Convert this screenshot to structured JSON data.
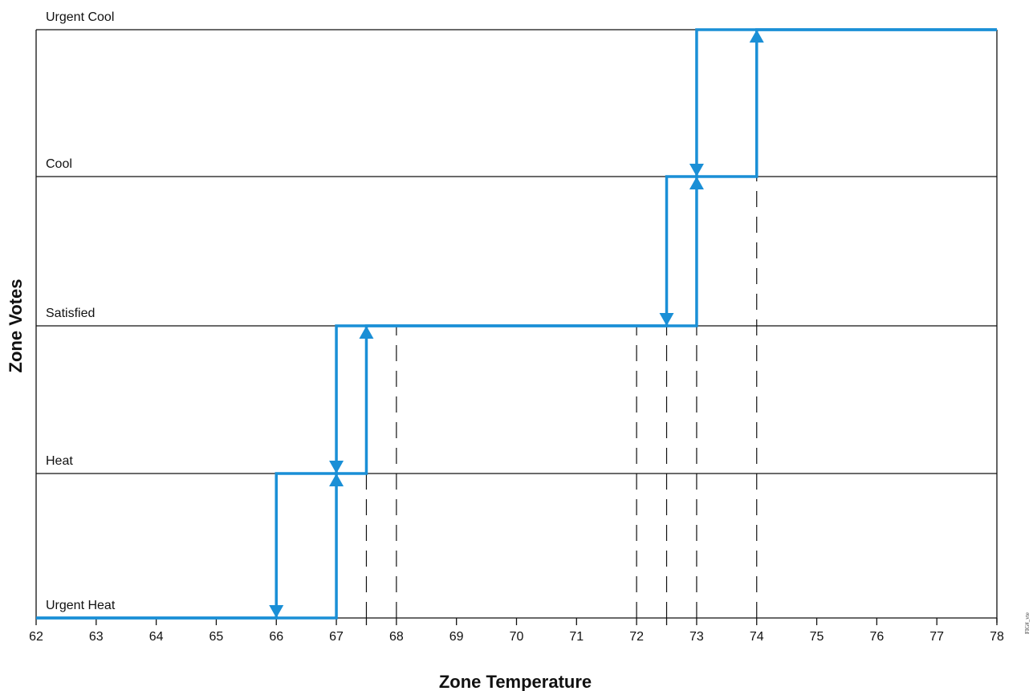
{
  "chart_data": {
    "type": "line",
    "title": "",
    "xlabel": "Zone Temperature",
    "ylabel": "Zone Votes",
    "figure_id": "FIG#_vte",
    "x_ticks": [
      62,
      63,
      64,
      65,
      66,
      67,
      68,
      69,
      70,
      71,
      72,
      73,
      74,
      75,
      76,
      77,
      78
    ],
    "xlim": [
      62,
      78
    ],
    "levels": [
      "Urgent Heat",
      "Heat",
      "Satisfied",
      "Cool",
      "Urgent Cool"
    ],
    "grid": "horizontal at each vote level",
    "line_color": "#1a8fd6",
    "series": [
      {
        "direction": "rising",
        "points": [
          {
            "x": 62,
            "y": "Urgent Heat"
          },
          {
            "x": 67,
            "y": "Urgent Heat"
          },
          {
            "x": 67,
            "y": "Heat"
          },
          {
            "x": 67.5,
            "y": "Heat"
          },
          {
            "x": 67.5,
            "y": "Satisfied"
          },
          {
            "x": 73,
            "y": "Satisfied"
          },
          {
            "x": 73,
            "y": "Cool"
          },
          {
            "x": 74,
            "y": "Cool"
          },
          {
            "x": 74,
            "y": "Urgent Cool"
          },
          {
            "x": 78,
            "y": "Urgent Cool"
          }
        ]
      },
      {
        "direction": "falling",
        "points": [
          {
            "x": 78,
            "y": "Urgent Cool"
          },
          {
            "x": 73,
            "y": "Urgent Cool"
          },
          {
            "x": 73,
            "y": "Cool"
          },
          {
            "x": 72.5,
            "y": "Cool"
          },
          {
            "x": 72.5,
            "y": "Satisfied"
          },
          {
            "x": 67,
            "y": "Satisfied"
          },
          {
            "x": 67,
            "y": "Heat"
          },
          {
            "x": 66,
            "y": "Heat"
          },
          {
            "x": 66,
            "y": "Urgent Heat"
          },
          {
            "x": 62,
            "y": "Urgent Heat"
          }
        ]
      }
    ],
    "transitions": [
      {
        "x": 67,
        "from": "Urgent Heat",
        "to": "Heat",
        "arrow": "up"
      },
      {
        "x": 67.5,
        "from": "Heat",
        "to": "Satisfied",
        "arrow": "up"
      },
      {
        "x": 73,
        "from": "Satisfied",
        "to": "Cool",
        "arrow": "up"
      },
      {
        "x": 74,
        "from": "Cool",
        "to": "Urgent Cool",
        "arrow": "up"
      },
      {
        "x": 73,
        "from": "Urgent Cool",
        "to": "Cool",
        "arrow": "down"
      },
      {
        "x": 72.5,
        "from": "Cool",
        "to": "Satisfied",
        "arrow": "down"
      },
      {
        "x": 67,
        "from": "Satisfied",
        "to": "Heat",
        "arrow": "down"
      },
      {
        "x": 66,
        "from": "Heat",
        "to": "Urgent Heat",
        "arrow": "down"
      }
    ],
    "dashed_guides": [
      {
        "x": 67.5,
        "from": "Urgent Heat",
        "to": "Heat"
      },
      {
        "x": 68,
        "from": "Urgent Heat",
        "to": "Satisfied"
      },
      {
        "x": 72,
        "from": "Urgent Heat",
        "to": "Satisfied"
      },
      {
        "x": 72.5,
        "from": "Urgent Heat",
        "to": "Satisfied"
      },
      {
        "x": 73,
        "from": "Urgent Heat",
        "to": "Satisfied"
      },
      {
        "x": 74,
        "from": "Urgent Heat",
        "to": "Cool"
      }
    ]
  }
}
